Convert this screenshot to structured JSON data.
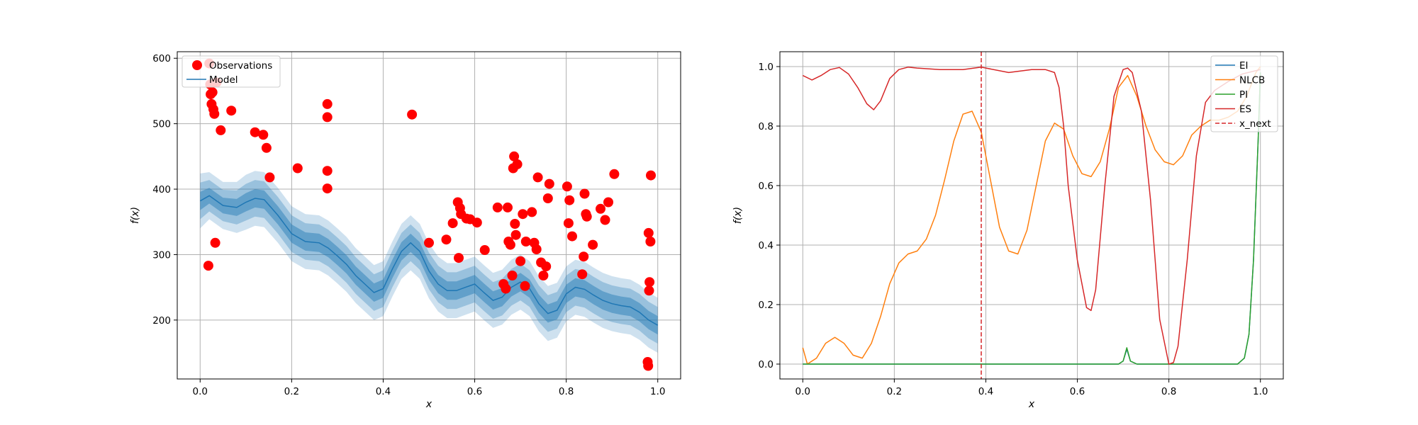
{
  "chart_data": [
    {
      "type": "line",
      "xlabel": "x",
      "ylabel": "f(x)",
      "xlim": [
        -0.05,
        1.05
      ],
      "ylim": [
        110,
        610
      ],
      "xticks": [
        0.0,
        0.2,
        0.4,
        0.6,
        0.8,
        1.0
      ],
      "xtick_labels": [
        "0.0",
        "0.2",
        "0.4",
        "0.6",
        "0.8",
        "1.0"
      ],
      "yticks": [
        200,
        300,
        400,
        500,
        600
      ],
      "ytick_labels": [
        "200",
        "300",
        "400",
        "500",
        "600"
      ],
      "grid": true,
      "legend_placement": "top-left",
      "legend": [
        "Observations",
        "Model"
      ],
      "colors": {
        "observations": "#ff0000",
        "model": "#1f77b4"
      },
      "model": {
        "x": [
          0.0,
          0.02,
          0.05,
          0.08,
          0.1,
          0.12,
          0.14,
          0.17,
          0.2,
          0.23,
          0.26,
          0.28,
          0.3,
          0.32,
          0.34,
          0.36,
          0.38,
          0.4,
          0.42,
          0.44,
          0.46,
          0.48,
          0.5,
          0.52,
          0.54,
          0.56,
          0.58,
          0.6,
          0.62,
          0.64,
          0.66,
          0.68,
          0.7,
          0.72,
          0.74,
          0.76,
          0.78,
          0.8,
          0.82,
          0.84,
          0.86,
          0.88,
          0.9,
          0.92,
          0.94,
          0.96,
          0.98,
          1.0
        ],
        "mean": [
          382,
          390,
          375,
          372,
          380,
          386,
          384,
          360,
          332,
          320,
          318,
          310,
          298,
          285,
          268,
          255,
          242,
          248,
          278,
          305,
          318,
          305,
          275,
          255,
          245,
          245,
          250,
          255,
          242,
          230,
          235,
          250,
          258,
          248,
          225,
          210,
          215,
          240,
          250,
          247,
          238,
          230,
          225,
          222,
          220,
          212,
          200,
          192
        ],
        "std": [
          14,
          12,
          12,
          13,
          14,
          14,
          14,
          14,
          14,
          14,
          14,
          14,
          14,
          14,
          14,
          14,
          14,
          14,
          14,
          14,
          14,
          14,
          14,
          14,
          14,
          14,
          14,
          14,
          14,
          14,
          14,
          14,
          14,
          14,
          14,
          14,
          14,
          14,
          14,
          14,
          14,
          14,
          14,
          14,
          14,
          14,
          14,
          14
        ]
      },
      "observations": {
        "x": [
          0.018,
          0.02,
          0.022,
          0.023,
          0.025,
          0.027,
          0.029,
          0.031,
          0.033,
          0.036,
          0.045,
          0.068,
          0.12,
          0.138,
          0.145,
          0.152,
          0.213,
          0.278,
          0.278,
          0.278,
          0.278,
          0.463,
          0.5,
          0.538,
          0.552,
          0.563,
          0.565,
          0.568,
          0.57,
          0.582,
          0.59,
          0.605,
          0.622,
          0.65,
          0.663,
          0.668,
          0.672,
          0.674,
          0.678,
          0.682,
          0.684,
          0.686,
          0.688,
          0.69,
          0.693,
          0.7,
          0.705,
          0.71,
          0.712,
          0.725,
          0.73,
          0.735,
          0.738,
          0.745,
          0.75,
          0.756,
          0.76,
          0.763,
          0.802,
          0.805,
          0.807,
          0.813,
          0.835,
          0.838,
          0.84,
          0.843,
          0.845,
          0.858,
          0.875,
          0.885,
          0.892,
          0.905,
          0.978,
          0.979,
          0.98,
          0.981,
          0.982,
          0.984,
          0.985
        ],
        "y": [
          283,
          592,
          560,
          545,
          530,
          548,
          522,
          515,
          318,
          563,
          490,
          520,
          487,
          483,
          463,
          418,
          432,
          530,
          510,
          428,
          401,
          514,
          318,
          323,
          348,
          380,
          295,
          371,
          362,
          355,
          354,
          349,
          307,
          372,
          255,
          248,
          372,
          320,
          315,
          268,
          432,
          450,
          347,
          330,
          438,
          290,
          362,
          252,
          320,
          365,
          318,
          308,
          418,
          288,
          268,
          282,
          386,
          408,
          404,
          348,
          383,
          328,
          270,
          297,
          393,
          362,
          358,
          315,
          370,
          353,
          380,
          423,
          136,
          130,
          333,
          245,
          258,
          320,
          421
        ]
      }
    },
    {
      "type": "line",
      "xlabel": "x",
      "ylabel": "f(x)",
      "xlim": [
        -0.05,
        1.05
      ],
      "ylim": [
        -0.05,
        1.05
      ],
      "xticks": [
        0.0,
        0.2,
        0.4,
        0.6,
        0.8,
        1.0
      ],
      "xtick_labels": [
        "0.0",
        "0.2",
        "0.4",
        "0.6",
        "0.8",
        "1.0"
      ],
      "yticks": [
        0.0,
        0.2,
        0.4,
        0.6,
        0.8,
        1.0
      ],
      "ytick_labels": [
        "0.0",
        "0.2",
        "0.4",
        "0.6",
        "0.8",
        "1.0"
      ],
      "grid": true,
      "legend_placement": "top-right",
      "x_next": 0.39,
      "series": [
        {
          "name": "EI",
          "color": "#1f77b4",
          "x": [
            0.0,
            0.69,
            0.7,
            0.708,
            0.716,
            0.73,
            0.95,
            0.965,
            0.975,
            0.985,
            0.995,
            1.0
          ],
          "values": [
            0.0,
            0.0,
            0.01,
            0.05,
            0.01,
            0.0,
            0.0,
            0.02,
            0.1,
            0.35,
            0.75,
            0.98
          ]
        },
        {
          "name": "NLCB",
          "color": "#ff7f0e",
          "x": [
            0.0,
            0.01,
            0.03,
            0.05,
            0.07,
            0.09,
            0.11,
            0.13,
            0.15,
            0.17,
            0.19,
            0.21,
            0.23,
            0.25,
            0.27,
            0.29,
            0.31,
            0.33,
            0.35,
            0.37,
            0.39,
            0.41,
            0.43,
            0.45,
            0.47,
            0.49,
            0.51,
            0.53,
            0.55,
            0.57,
            0.59,
            0.61,
            0.63,
            0.65,
            0.67,
            0.69,
            0.71,
            0.73,
            0.75,
            0.77,
            0.79,
            0.81,
            0.83,
            0.85,
            0.87,
            0.89,
            0.91,
            0.93,
            0.95,
            0.97,
            0.99,
            1.0
          ],
          "values": [
            0.055,
            0.0,
            0.02,
            0.07,
            0.09,
            0.07,
            0.03,
            0.02,
            0.07,
            0.16,
            0.27,
            0.34,
            0.37,
            0.38,
            0.42,
            0.5,
            0.62,
            0.75,
            0.84,
            0.85,
            0.78,
            0.62,
            0.46,
            0.38,
            0.37,
            0.45,
            0.6,
            0.75,
            0.81,
            0.79,
            0.7,
            0.64,
            0.63,
            0.68,
            0.79,
            0.93,
            0.97,
            0.9,
            0.8,
            0.72,
            0.68,
            0.67,
            0.7,
            0.77,
            0.8,
            0.82,
            0.82,
            0.83,
            0.85,
            0.9,
            0.98,
            1.0
          ]
        },
        {
          "name": "PI",
          "color": "#2ca02c",
          "x": [
            0.0,
            0.69,
            0.7,
            0.708,
            0.716,
            0.73,
            0.95,
            0.965,
            0.975,
            0.985,
            0.995,
            1.0
          ],
          "values": [
            0.0,
            0.0,
            0.01,
            0.055,
            0.01,
            0.0,
            0.0,
            0.02,
            0.1,
            0.35,
            0.75,
            0.98
          ]
        },
        {
          "name": "ES",
          "color": "#d62728",
          "x": [
            0.0,
            0.02,
            0.04,
            0.06,
            0.08,
            0.1,
            0.12,
            0.14,
            0.155,
            0.17,
            0.19,
            0.21,
            0.23,
            0.25,
            0.3,
            0.35,
            0.39,
            0.45,
            0.5,
            0.53,
            0.55,
            0.56,
            0.57,
            0.58,
            0.6,
            0.62,
            0.63,
            0.64,
            0.66,
            0.68,
            0.7,
            0.71,
            0.72,
            0.74,
            0.76,
            0.78,
            0.8,
            0.81,
            0.82,
            0.84,
            0.86,
            0.88,
            0.9,
            0.93,
            0.96,
            1.0
          ],
          "values": [
            0.97,
            0.955,
            0.97,
            0.99,
            0.997,
            0.975,
            0.93,
            0.875,
            0.855,
            0.885,
            0.96,
            0.99,
            0.998,
            0.995,
            0.99,
            0.99,
            0.998,
            0.98,
            0.99,
            0.99,
            0.98,
            0.93,
            0.8,
            0.6,
            0.35,
            0.19,
            0.18,
            0.25,
            0.6,
            0.9,
            0.99,
            0.995,
            0.98,
            0.85,
            0.55,
            0.15,
            0.0,
            0.005,
            0.06,
            0.35,
            0.7,
            0.88,
            0.92,
            0.95,
            0.975,
            0.99
          ]
        }
      ],
      "legend": [
        "EI",
        "NLCB",
        "PI",
        "ES",
        "x_next"
      ],
      "x_next_color": "#d62728"
    }
  ]
}
